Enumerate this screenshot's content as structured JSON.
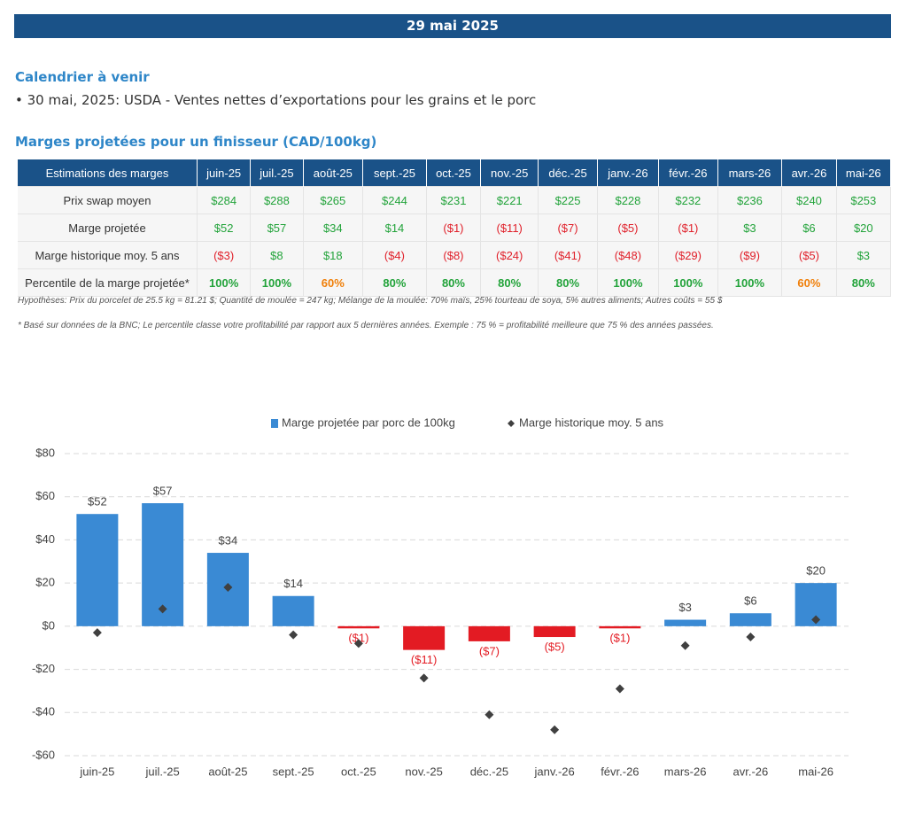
{
  "header": {
    "title": "29 mai 2025"
  },
  "calendar": {
    "title": "Calendrier à venir",
    "items": [
      "• 30 mai, 2025: USDA - Ventes nettes d’exportations pour les grains et le porc"
    ]
  },
  "table": {
    "title": "Marges projetées pour un finisseur (CAD/100kg)",
    "header": [
      "Estimations des marges",
      "juin-25",
      "juil.-25",
      "août-25",
      "sept.-25",
      "oct.-25",
      "nov.-25",
      "déc.-25",
      "janv.-26",
      "févr.-26",
      "mars-26",
      "avr.-26",
      "mai-26"
    ],
    "rows": [
      {
        "label": "Prix swap moyen",
        "cells": [
          "$284",
          "$288",
          "$265",
          "$244",
          "$231",
          "$221",
          "$225",
          "$228",
          "$232",
          "$236",
          "$240",
          "$253"
        ],
        "colors": [
          "#22a33a",
          "#22a33a",
          "#22a33a",
          "#22a33a",
          "#22a33a",
          "#22a33a",
          "#22a33a",
          "#22a33a",
          "#22a33a",
          "#22a33a",
          "#22a33a",
          "#22a33a"
        ]
      },
      {
        "label": "Marge projetée",
        "cells": [
          "$52",
          "$57",
          "$34",
          "$14",
          "($1)",
          "($11)",
          "($7)",
          "($5)",
          "($1)",
          "$3",
          "$6",
          "$20"
        ],
        "colors": [
          "#22a33a",
          "#22a33a",
          "#22a33a",
          "#22a33a",
          "#e0202a",
          "#e0202a",
          "#e0202a",
          "#e0202a",
          "#e0202a",
          "#22a33a",
          "#22a33a",
          "#22a33a"
        ]
      },
      {
        "label": "Marge historique moy. 5 ans",
        "cells": [
          "($3)",
          "$8",
          "$18",
          "($4)",
          "($8)",
          "($24)",
          "($41)",
          "($48)",
          "($29)",
          "($9)",
          "($5)",
          "$3"
        ],
        "colors": [
          "#e0202a",
          "#22a33a",
          "#22a33a",
          "#e0202a",
          "#e0202a",
          "#e0202a",
          "#e0202a",
          "#e0202a",
          "#e0202a",
          "#e0202a",
          "#e0202a",
          "#22a33a"
        ]
      },
      {
        "label": "Percentile de la marge projetée*",
        "cells": [
          "100%",
          "100%",
          "60%",
          "80%",
          "80%",
          "80%",
          "80%",
          "100%",
          "100%",
          "100%",
          "60%",
          "80%"
        ],
        "colors": [
          "#22a33a",
          "#22a33a",
          "#f07f09",
          "#22a33a",
          "#22a33a",
          "#22a33a",
          "#22a33a",
          "#22a33a",
          "#22a33a",
          "#22a33a",
          "#f07f09",
          "#22a33a"
        ],
        "bold": true
      }
    ],
    "notes": [
      "Hypothèses: Prix du porcelet de 25.5 kg = 81.21 $; Quantité de moulée = 247 kg; Mélange de la moulée: 70% maïs, 25% tourteau de soya, 5% autres aliments; Autres coûts = 55 $",
      "* Basé sur données de la BNC; Le percentile classe votre profitabilité par rapport aux 5 dernières années. Exemple : 75 % = profitabilité meilleure que 75 % des années passées."
    ]
  },
  "chart_data": {
    "type": "bar",
    "categories": [
      "juin-25",
      "juil.-25",
      "août-25",
      "sept.-25",
      "oct.-25",
      "nov.-25",
      "déc.-25",
      "janv.-26",
      "févr.-26",
      "mars-26",
      "avr.-26",
      "mai-26"
    ],
    "series": [
      {
        "name": "Marge projetée par porc de 100kg",
        "type": "bar",
        "color": "#3a8ad4",
        "negative_color": "#e31b23",
        "values": [
          52,
          57,
          34,
          14,
          -1,
          -11,
          -7,
          -5,
          -1,
          3,
          6,
          20
        ],
        "value_labels": [
          "$52",
          "$57",
          "$34",
          "$14",
          "($1)",
          "($11)",
          "($7)",
          "($5)",
          "($1)",
          "$3",
          "$6",
          "$20"
        ]
      },
      {
        "name": "Marge historique moy. 5 ans",
        "type": "scatter",
        "color": "#404040",
        "values": [
          -3,
          8,
          18,
          -4,
          -8,
          -24,
          -41,
          -48,
          -29,
          -9,
          -5,
          3
        ]
      }
    ],
    "ylim": [
      -60,
      80
    ],
    "yticks": [
      {
        "value": -60,
        "label": "-$60"
      },
      {
        "value": -40,
        "label": "-$40"
      },
      {
        "value": -20,
        "label": "-$20"
      },
      {
        "value": 0,
        "label": "$0"
      },
      {
        "value": 20,
        "label": "$20"
      },
      {
        "value": 40,
        "label": "$40"
      },
      {
        "value": 60,
        "label": "$60"
      },
      {
        "value": 80,
        "label": "$80"
      }
    ],
    "grid": true,
    "legend": "top"
  }
}
